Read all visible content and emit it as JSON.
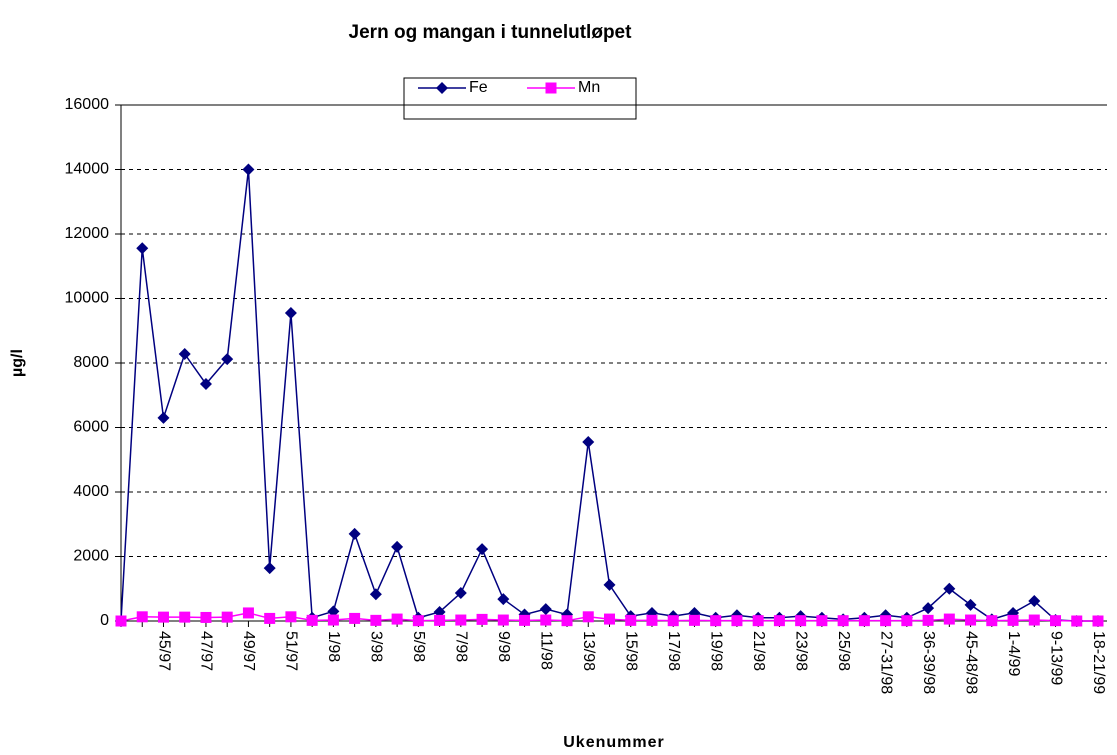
{
  "chart_data": {
    "type": "line",
    "title": "Jern og mangan i tunnelutløpet",
    "x_label": "Ukenummer",
    "y_label": "µg/l",
    "categories": [
      null,
      null,
      "45/97",
      null,
      "47/97",
      null,
      "49/97",
      null,
      "51/97",
      null,
      "1/98",
      null,
      "3/98",
      null,
      "5/98",
      null,
      "7/98",
      null,
      "9/98",
      null,
      "11/98",
      null,
      "13/98",
      null,
      "15/98",
      null,
      "17/98",
      null,
      "19/98",
      null,
      "21/98",
      null,
      "23/98",
      null,
      "25/98",
      null,
      "27-31/98",
      null,
      "36-39/98",
      null,
      "45-48/98",
      null,
      "1-4/99",
      null,
      "9-13/99",
      null,
      "18-21/99"
    ],
    "series": [
      {
        "name": "Fe",
        "color": "#000080",
        "marker": "diamond",
        "values": [
          0,
          11560,
          6300,
          8280,
          7350,
          8120,
          14000,
          1640,
          9550,
          100,
          300,
          2700,
          830,
          2300,
          100,
          280,
          870,
          2230,
          680,
          200,
          370,
          200,
          5550,
          1120,
          150,
          250,
          150,
          250,
          100,
          180,
          100,
          100,
          150,
          100,
          50,
          100,
          180,
          100,
          400,
          1000,
          500,
          50,
          250,
          620,
          30,
          0,
          0
        ]
      },
      {
        "name": "Mn",
        "color": "#ff00ff",
        "marker": "square",
        "values": [
          0,
          130,
          120,
          120,
          110,
          120,
          250,
          80,
          130,
          20,
          30,
          80,
          20,
          60,
          10,
          20,
          30,
          50,
          30,
          20,
          30,
          10,
          130,
          60,
          20,
          20,
          10,
          20,
          10,
          10,
          10,
          10,
          10,
          10,
          10,
          10,
          10,
          10,
          20,
          60,
          30,
          10,
          20,
          30,
          10,
          0,
          0
        ]
      }
    ],
    "ylim": [
      0,
      16000
    ],
    "yticks": [
      0,
      2000,
      4000,
      6000,
      8000,
      10000,
      12000,
      14000,
      16000
    ],
    "grid": true,
    "legend": "top"
  }
}
